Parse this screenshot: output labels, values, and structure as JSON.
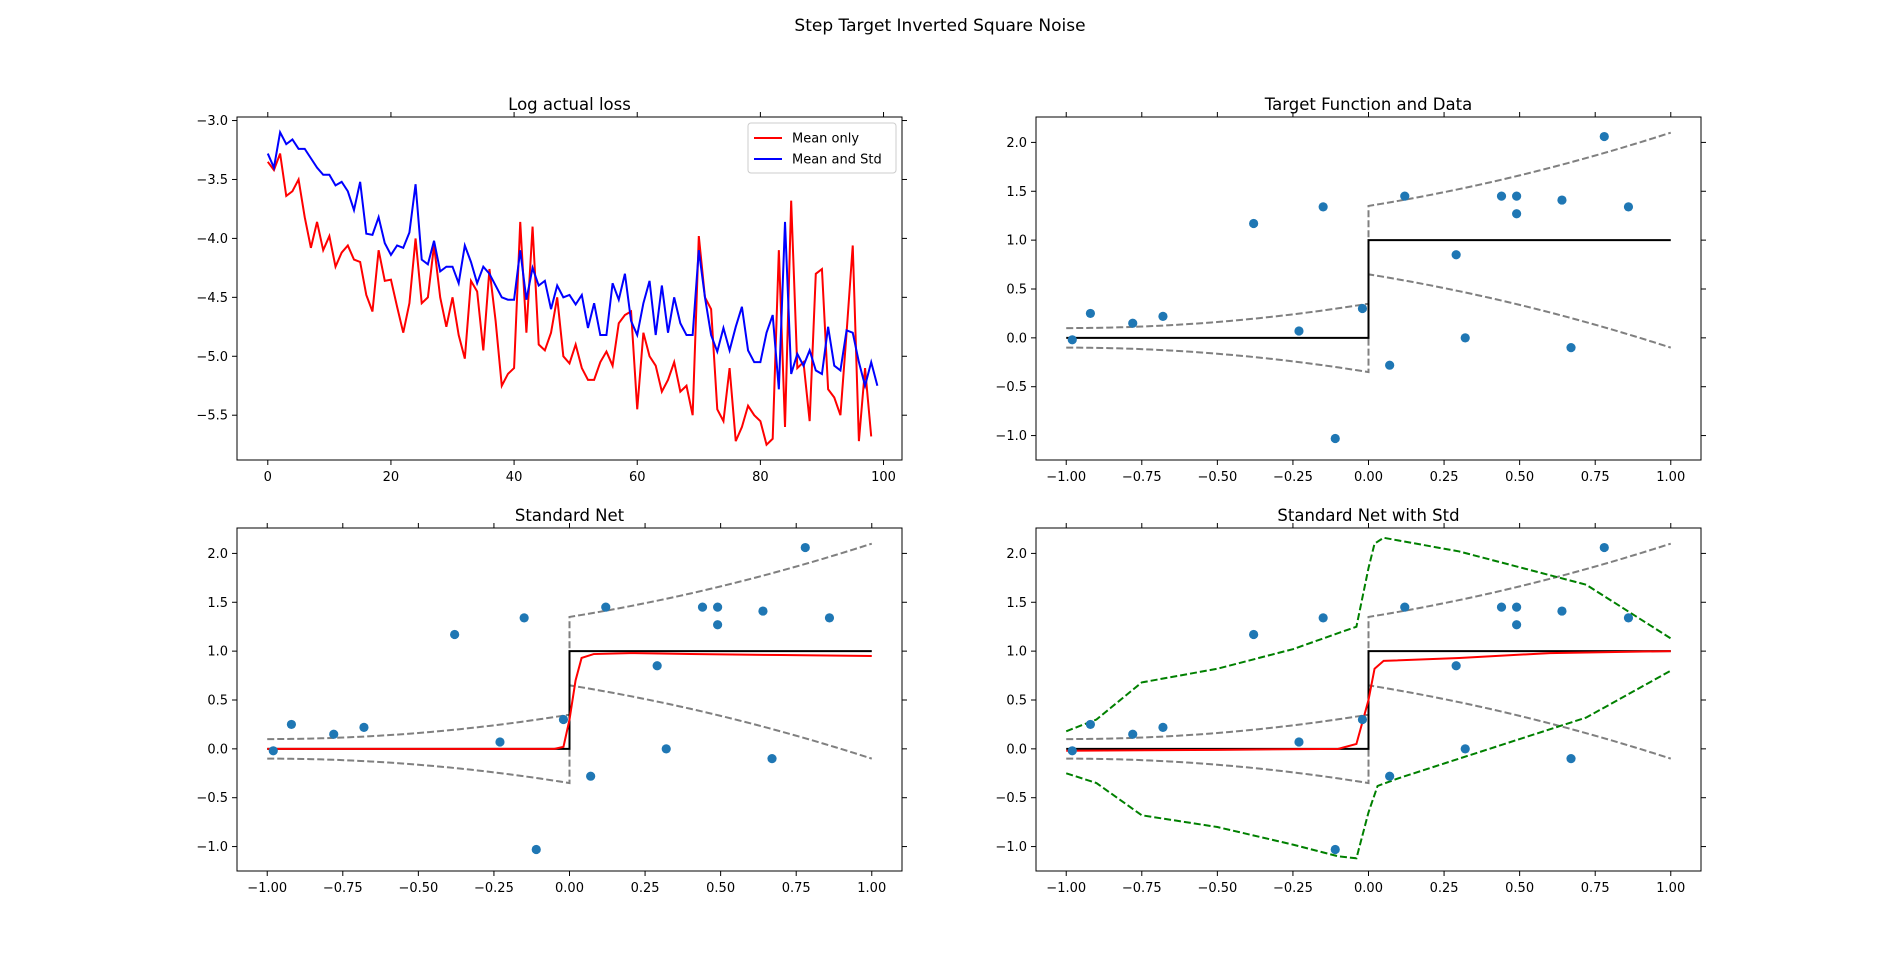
{
  "figure": {
    "suptitle": "Step Target Inverted Square Noise"
  },
  "chart_data": [
    {
      "type": "line",
      "title": "Log actual loss",
      "xlim": [
        -5,
        103
      ],
      "ylim": [
        -5.88,
        -2.97
      ],
      "xticks": [
        0,
        20,
        40,
        60,
        80,
        100
      ],
      "yticks": [
        -5.5,
        -5.0,
        -4.5,
        -4.0,
        -3.5,
        -3.0
      ],
      "legend": {
        "placement": "top-right"
      },
      "series": [
        {
          "name": "Mean only",
          "color": "#ff0000",
          "values": [
            -3.35,
            -3.42,
            -3.28,
            -3.64,
            -3.6,
            -3.5,
            -3.82,
            -4.08,
            -3.86,
            -4.1,
            -3.98,
            -4.24,
            -4.12,
            -4.06,
            -4.18,
            -4.2,
            -4.48,
            -4.62,
            -4.1,
            -4.36,
            -4.35,
            -4.58,
            -4.8,
            -4.55,
            -4.0,
            -4.55,
            -4.5,
            -4.06,
            -4.5,
            -4.75,
            -4.5,
            -4.82,
            -5.02,
            -4.36,
            -4.45,
            -4.95,
            -4.26,
            -4.7,
            -5.25,
            -5.15,
            -5.1,
            -3.86,
            -4.8,
            -3.9,
            -4.9,
            -4.95,
            -4.8,
            -4.5,
            -5.0,
            -5.06,
            -4.9,
            -5.1,
            -5.2,
            -5.2,
            -5.05,
            -4.96,
            -5.08,
            -4.72,
            -4.65,
            -4.62,
            -5.45,
            -4.8,
            -5.0,
            -5.08,
            -5.3,
            -5.2,
            -5.05,
            -5.3,
            -5.25,
            -5.5,
            -3.98,
            -4.5,
            -4.6,
            -5.45,
            -5.55,
            -5.1,
            -5.72,
            -5.6,
            -5.42,
            -5.5,
            -5.55,
            -5.75,
            -5.7,
            -4.1,
            -5.6,
            -3.68,
            -5.1,
            -5.05,
            -5.55,
            -4.3,
            -4.26,
            -5.28,
            -5.35,
            -5.5,
            -4.8,
            -4.06,
            -5.72,
            -5.1,
            -5.68
          ]
        },
        {
          "name": "Mean and Std",
          "color": "#0000ff",
          "values": [
            -3.28,
            -3.4,
            -3.1,
            -3.2,
            -3.16,
            -3.24,
            -3.24,
            -3.32,
            -3.4,
            -3.46,
            -3.46,
            -3.55,
            -3.52,
            -3.6,
            -3.76,
            -3.52,
            -3.96,
            -3.97,
            -3.82,
            -4.04,
            -4.14,
            -4.06,
            -4.08,
            -3.95,
            -3.54,
            -4.18,
            -4.22,
            -4.02,
            -4.28,
            -4.24,
            -4.24,
            -4.38,
            -4.06,
            -4.2,
            -4.38,
            -4.24,
            -4.3,
            -4.4,
            -4.5,
            -4.52,
            -4.52,
            -4.1,
            -4.52,
            -4.25,
            -4.4,
            -4.36,
            -4.6,
            -4.4,
            -4.5,
            -4.48,
            -4.56,
            -4.48,
            -4.76,
            -4.55,
            -4.82,
            -4.82,
            -4.38,
            -4.52,
            -4.3,
            -4.7,
            -4.82,
            -4.55,
            -4.36,
            -4.82,
            -4.4,
            -4.8,
            -4.5,
            -4.72,
            -4.82,
            -4.82,
            -4.1,
            -4.5,
            -4.82,
            -4.96,
            -4.76,
            -4.95,
            -4.75,
            -4.58,
            -4.95,
            -5.05,
            -5.05,
            -4.8,
            -4.65,
            -5.28,
            -3.86,
            -5.15,
            -4.98,
            -5.08,
            -4.95,
            -5.12,
            -5.15,
            -4.75,
            -5.08,
            -5.12,
            -4.78,
            -4.8,
            -5.05,
            -5.25,
            -5.05,
            -5.25
          ]
        }
      ]
    },
    {
      "type": "scatter",
      "title": "Target Function and Data",
      "xlim": [
        -1.1,
        1.1
      ],
      "ylim": [
        -1.25,
        2.26
      ],
      "xticks": [
        -1.0,
        -0.75,
        -0.5,
        -0.25,
        0.0,
        0.25,
        0.5,
        0.75,
        1.0
      ],
      "yticks": [
        -1.0,
        -0.5,
        0.0,
        0.5,
        1.0,
        1.5,
        2.0
      ],
      "points": [
        [
          -0.98,
          -0.02
        ],
        [
          -0.92,
          0.25
        ],
        [
          -0.78,
          0.15
        ],
        [
          -0.68,
          0.22
        ],
        [
          -0.38,
          1.17
        ],
        [
          -0.23,
          0.07
        ],
        [
          -0.15,
          1.34
        ],
        [
          -0.11,
          -1.03
        ],
        [
          -0.02,
          0.3
        ],
        [
          0.07,
          -0.28
        ],
        [
          0.12,
          1.45
        ],
        [
          0.29,
          0.85
        ],
        [
          0.32,
          0.0
        ],
        [
          0.44,
          1.45
        ],
        [
          0.49,
          1.45
        ],
        [
          0.49,
          1.27
        ],
        [
          0.64,
          1.41
        ],
        [
          0.67,
          -0.1
        ],
        [
          0.78,
          2.06
        ],
        [
          0.86,
          1.34
        ]
      ],
      "target_step": {
        "low": 0.0,
        "high": 1.0,
        "at": 0.0
      },
      "noise_band": "target ± 0.1 + (x+1)²/4 (dashed grey)"
    },
    {
      "type": "scatter",
      "title": "Standard Net",
      "xlim": [
        -1.1,
        1.1
      ],
      "ylim": [
        -1.25,
        2.26
      ],
      "xticks": [
        -1.0,
        -0.75,
        -0.5,
        -0.25,
        0.0,
        0.25,
        0.5,
        0.75,
        1.0
      ],
      "yticks": [
        -1.0,
        -0.5,
        0.0,
        0.5,
        1.0,
        1.5,
        2.0
      ],
      "points": [
        [
          -0.98,
          -0.02
        ],
        [
          -0.92,
          0.25
        ],
        [
          -0.78,
          0.15
        ],
        [
          -0.68,
          0.22
        ],
        [
          -0.38,
          1.17
        ],
        [
          -0.23,
          0.07
        ],
        [
          -0.15,
          1.34
        ],
        [
          -0.11,
          -1.03
        ],
        [
          -0.02,
          0.3
        ],
        [
          0.07,
          -0.28
        ],
        [
          0.12,
          1.45
        ],
        [
          0.29,
          0.85
        ],
        [
          0.32,
          0.0
        ],
        [
          0.44,
          1.45
        ],
        [
          0.49,
          1.45
        ],
        [
          0.49,
          1.27
        ],
        [
          0.64,
          1.41
        ],
        [
          0.67,
          -0.1
        ],
        [
          0.78,
          2.06
        ],
        [
          0.86,
          1.34
        ]
      ],
      "prediction": {
        "color": "#ff0000",
        "x": [
          -1.0,
          -0.5,
          -0.2,
          -0.05,
          -0.02,
          0.0,
          0.02,
          0.04,
          0.08,
          0.2,
          0.4,
          0.7,
          1.0
        ],
        "y": [
          0.0,
          0.0,
          0.0,
          0.0,
          0.02,
          0.3,
          0.7,
          0.93,
          0.97,
          0.98,
          0.97,
          0.96,
          0.95
        ]
      }
    },
    {
      "type": "scatter",
      "title": "Standard Net with Std",
      "xlim": [
        -1.1,
        1.1
      ],
      "ylim": [
        -1.25,
        2.26
      ],
      "xticks": [
        -1.0,
        -0.75,
        -0.5,
        -0.25,
        0.0,
        0.25,
        0.5,
        0.75,
        1.0
      ],
      "yticks": [
        -1.0,
        -0.5,
        0.0,
        0.5,
        1.0,
        1.5,
        2.0
      ],
      "points": [
        [
          -0.98,
          -0.02
        ],
        [
          -0.92,
          0.25
        ],
        [
          -0.78,
          0.15
        ],
        [
          -0.68,
          0.22
        ],
        [
          -0.38,
          1.17
        ],
        [
          -0.23,
          0.07
        ],
        [
          -0.15,
          1.34
        ],
        [
          -0.11,
          -1.03
        ],
        [
          -0.02,
          0.3
        ],
        [
          0.07,
          -0.28
        ],
        [
          0.12,
          1.45
        ],
        [
          0.29,
          0.85
        ],
        [
          0.32,
          0.0
        ],
        [
          0.44,
          1.45
        ],
        [
          0.49,
          1.45
        ],
        [
          0.49,
          1.27
        ],
        [
          0.64,
          1.41
        ],
        [
          0.67,
          -0.1
        ],
        [
          0.78,
          2.06
        ],
        [
          0.86,
          1.34
        ]
      ],
      "prediction": {
        "color": "#ff0000",
        "x": [
          -1.0,
          -0.5,
          -0.1,
          -0.04,
          0.0,
          0.02,
          0.05,
          0.3,
          0.6,
          1.0
        ],
        "y": [
          -0.02,
          -0.01,
          0.0,
          0.05,
          0.5,
          0.82,
          0.9,
          0.93,
          0.98,
          1.0
        ]
      },
      "upper_band": {
        "color": "#008000",
        "x": [
          -1.0,
          -0.9,
          -0.75,
          -0.5,
          -0.25,
          -0.04,
          0.0,
          0.02,
          0.05,
          0.3,
          0.72,
          1.0
        ],
        "y": [
          0.18,
          0.3,
          0.68,
          0.82,
          1.02,
          1.25,
          1.85,
          2.1,
          2.16,
          2.02,
          1.68,
          1.13
        ]
      },
      "lower_band": {
        "color": "#008000",
        "x": [
          -1.0,
          -0.9,
          -0.75,
          -0.5,
          -0.25,
          -0.1,
          -0.04,
          0.0,
          0.03,
          0.1,
          0.3,
          0.72,
          1.0
        ],
        "y": [
          -0.25,
          -0.35,
          -0.68,
          -0.8,
          -0.98,
          -1.1,
          -1.12,
          -0.65,
          -0.38,
          -0.3,
          -0.1,
          0.32,
          0.8
        ]
      }
    }
  ]
}
